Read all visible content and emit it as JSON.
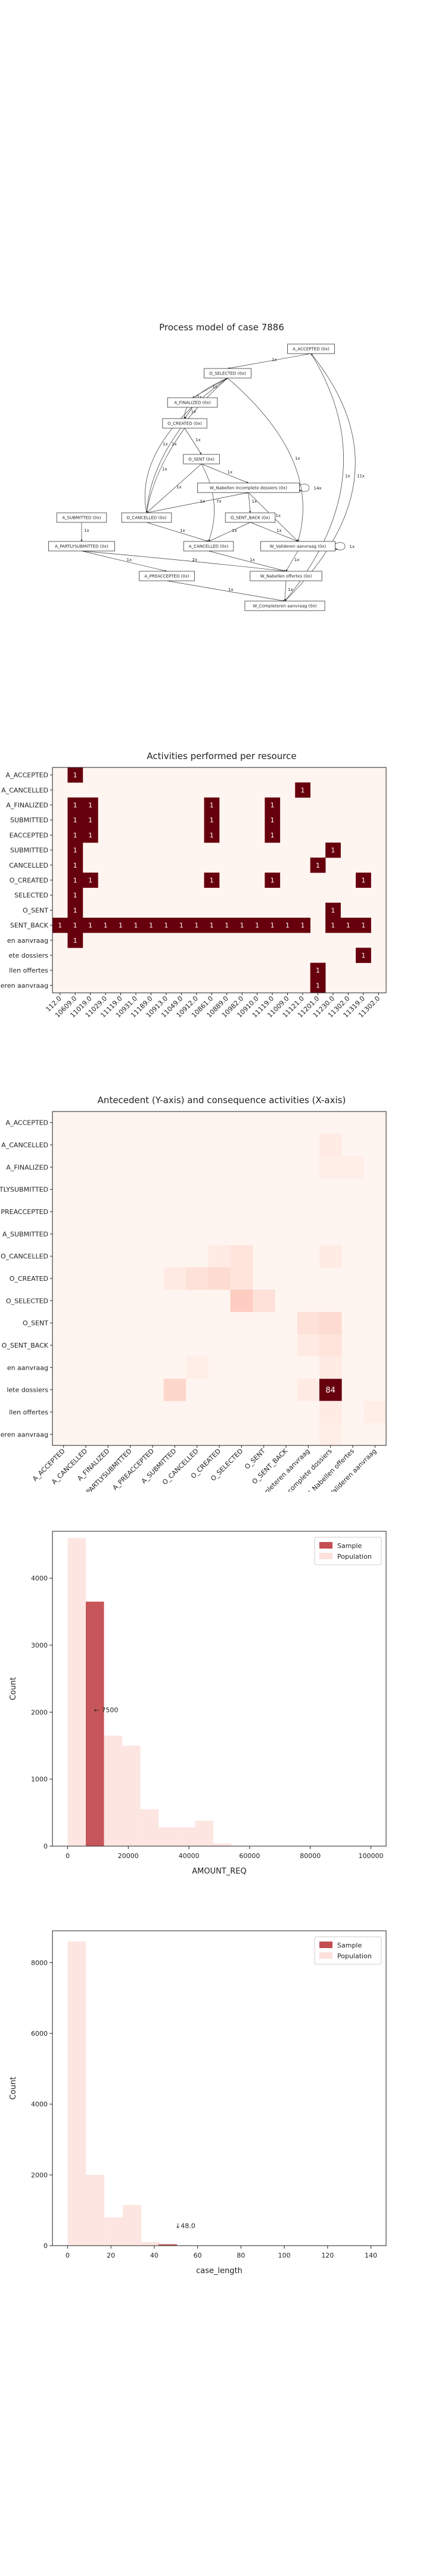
{
  "colors": {
    "dark": "#67000d",
    "light": "#fff5f0",
    "sample": "#c44e52",
    "population": "#fde0dc",
    "heat_mid": "#fb6a4a"
  },
  "chart_data": [
    {
      "type": "diagram",
      "title": "Process model of case 7886",
      "nodes": [
        {
          "id": "a_accepted",
          "label": "A_ACCEPTED (0x)"
        },
        {
          "id": "o_selected",
          "label": "O_SELECTED (0x)"
        },
        {
          "id": "a_finalized",
          "label": "A_FINALIZED (0x)"
        },
        {
          "id": "o_created",
          "label": "O_CREATED (0x)"
        },
        {
          "id": "o_sent",
          "label": "O_SENT (0x)"
        },
        {
          "id": "w_nabellen_incompleet",
          "label": "W_Nabellen incomplete dossiers (0x)"
        },
        {
          "id": "a_submitted",
          "label": "A_SUBMITTED (0x)"
        },
        {
          "id": "o_cancelled",
          "label": "O_CANCELLED (0x)"
        },
        {
          "id": "o_sent_back",
          "label": "O_SENT_BACK (0x)"
        },
        {
          "id": "a_partlysubmitted",
          "label": "A_PARTLYSUBMITTED (0x)"
        },
        {
          "id": "a_cancelled",
          "label": "A_CANCELLED (0x)"
        },
        {
          "id": "w_valideren",
          "label": "W_Valideren aanvraag (0x)"
        },
        {
          "id": "a_preaccepted",
          "label": "A_PREACCEPTED (0x)"
        },
        {
          "id": "w_nabellen_offertes",
          "label": "W_Nabellen offertes (0x)"
        },
        {
          "id": "w_completeren",
          "label": "W_Completeren aanvraag (0x)"
        }
      ],
      "edge_labels": [
        "1x",
        "1x",
        "1x",
        "1x",
        "1x",
        "1x",
        "1x",
        "1x",
        "1x",
        "1x",
        "1x",
        "1x",
        "1x",
        "1x",
        "1x",
        "1x",
        "1x",
        "1x",
        "1x",
        "1x",
        "1x",
        "1x",
        "1x",
        "1x",
        "14x",
        "11x",
        "2x",
        "7x",
        "1x"
      ]
    },
    {
      "type": "heatmap",
      "title": "Activities performed per resource",
      "rows": [
        "A_ACCEPTED",
        "A_CANCELLED",
        "A_FINALIZED",
        "A_SUBMITTED",
        "A_PREACCEPTED",
        "A_SUBMITTED",
        "O_CANCELLED",
        "O_CREATED",
        "O_SELECTED",
        "O_SENT",
        "O_SENT_BACK",
        "W_Completeren aanvraag",
        "W_Nabellen incomplete dossiers",
        "W_Nabellen offertes",
        "W_Valideren aanvraag"
      ],
      "row_labels_visible": [
        "A_ACCEPTED",
        "A_CANCELLED",
        "A_FINALIZED",
        "SUBMITTED",
        "EACCEPTED",
        "SUBMITTED",
        "CANCELLED",
        "O_CREATED",
        "SELECTED",
        "O_SENT",
        "SENT_BACK",
        "en aanvraag",
        "ete dossiers",
        "llen offertes",
        "eren aanvraag"
      ],
      "columns": [
        "112.0",
        "10609.0",
        "11019.0",
        "11029.0",
        "11119.0",
        "10931.0",
        "11189.0",
        "10913.0",
        "11049.0",
        "10912.0",
        "10861.0",
        "10889.0",
        "10982.0",
        "10910.0",
        "11119.0",
        "11009.0",
        "11121.0",
        "11201.0",
        "11230.0",
        "11302.0",
        "11319.0",
        "11302.0"
      ],
      "cells": [
        [
          0,
          1,
          1
        ],
        [
          1,
          16,
          1
        ],
        [
          2,
          1,
          1
        ],
        [
          2,
          2,
          1
        ],
        [
          2,
          10,
          1
        ],
        [
          2,
          14,
          1
        ],
        [
          3,
          1,
          1
        ],
        [
          3,
          2,
          1
        ],
        [
          3,
          10,
          1
        ],
        [
          3,
          14,
          1
        ],
        [
          4,
          1,
          1
        ],
        [
          4,
          2,
          1
        ],
        [
          4,
          10,
          1
        ],
        [
          4,
          14,
          1
        ],
        [
          5,
          1,
          1
        ],
        [
          5,
          18,
          1
        ],
        [
          6,
          1,
          1
        ],
        [
          6,
          17,
          1
        ],
        [
          7,
          1,
          1
        ],
        [
          7,
          2,
          1
        ],
        [
          7,
          10,
          1
        ],
        [
          7,
          14,
          1
        ],
        [
          7,
          20,
          1
        ],
        [
          8,
          1,
          1
        ],
        [
          9,
          1,
          1
        ],
        [
          9,
          18,
          1
        ],
        [
          10,
          0,
          1
        ],
        [
          10,
          1,
          1
        ],
        [
          10,
          2,
          1
        ],
        [
          10,
          3,
          1
        ],
        [
          10,
          4,
          1
        ],
        [
          10,
          5,
          1
        ],
        [
          10,
          6,
          1
        ],
        [
          10,
          7,
          1
        ],
        [
          10,
          8,
          1
        ],
        [
          10,
          9,
          1
        ],
        [
          10,
          10,
          1
        ],
        [
          10,
          11,
          1
        ],
        [
          10,
          12,
          1
        ],
        [
          10,
          13,
          1
        ],
        [
          10,
          14,
          1
        ],
        [
          10,
          15,
          1
        ],
        [
          10,
          16,
          1
        ],
        [
          10,
          18,
          1
        ],
        [
          10,
          19,
          1
        ],
        [
          10,
          20,
          1
        ],
        [
          11,
          1,
          1
        ],
        [
          12,
          20,
          1
        ],
        [
          13,
          17,
          1
        ],
        [
          14,
          17,
          1
        ]
      ]
    },
    {
      "type": "heatmap",
      "title": "Antecedent (Y-axis) and consequence activities (X-axis)",
      "rows": [
        "A_ACCEPTED",
        "A_CANCELLED",
        "A_FINALIZED",
        "A_PARTLYSUBMITTED",
        "A_PREACCEPTED",
        "A_SUBMITTED",
        "O_CANCELLED",
        "O_CREATED",
        "O_SELECTED",
        "O_SENT",
        "O_SENT_BACK",
        "W_Completeren aanvraag",
        "W_Nabellen incomplete dossiers",
        "W_Nabellen offertes",
        "W_Valideren aanvraag"
      ],
      "row_labels_visible": [
        "A_ACCEPTED",
        "A_CANCELLED",
        "A_FINALIZED",
        "PARTLYSUBMITTED",
        "PREACCEPTED",
        "A_SUBMITTED",
        "O_CANCELLED",
        "O_CREATED",
        "O_SELECTED",
        "O_SENT",
        "O_SENT_BACK",
        "en aanvraag",
        "lete dossiers",
        "llen offertes",
        "eren aanvraag"
      ],
      "columns": [
        "A_ACCEPTED",
        "A_CANCELLED",
        "A_FINALIZED",
        "A_PARTLYSUBMITTED",
        "A_PREACCEPTED",
        "A_SUBMITTED",
        "O_CANCELLED",
        "O_CREATED",
        "O_SELECTED",
        "O_SENT",
        "O_SENT_BACK",
        "W_Completeren aanvraag",
        "W_Nabellen incomplete dossiers",
        "W_Nabellen offertes",
        "W_Valideren aanvraag"
      ],
      "max": 84,
      "cells": [
        [
          1,
          12,
          3
        ],
        [
          2,
          12,
          2
        ],
        [
          2,
          13,
          2
        ],
        [
          6,
          7,
          3
        ],
        [
          6,
          8,
          5
        ],
        [
          6,
          12,
          3
        ],
        [
          7,
          5,
          3
        ],
        [
          7,
          6,
          6
        ],
        [
          7,
          7,
          8
        ],
        [
          7,
          8,
          5
        ],
        [
          8,
          8,
          12
        ],
        [
          8,
          9,
          6
        ],
        [
          9,
          11,
          6
        ],
        [
          9,
          12,
          8
        ],
        [
          10,
          11,
          3
        ],
        [
          10,
          12,
          5
        ],
        [
          12,
          5,
          9
        ],
        [
          12,
          11,
          3
        ],
        [
          12,
          12,
          84
        ],
        [
          13,
          12,
          3
        ],
        [
          13,
          14,
          2
        ],
        [
          11,
          6,
          2
        ],
        [
          11,
          12,
          3
        ],
        [
          14,
          12,
          2
        ]
      ],
      "labeled": [
        [
          12,
          12,
          "84"
        ]
      ]
    },
    {
      "type": "bar",
      "xlabel": "AMOUNT_REQ",
      "ylabel": "Count",
      "xlim": [
        -5000,
        105000
      ],
      "ylim": [
        0,
        4700
      ],
      "xticks": [
        "0",
        "20000",
        "40000",
        "60000",
        "80000",
        "100000"
      ],
      "xtick_values": [
        0,
        20000,
        40000,
        60000,
        80000,
        100000
      ],
      "yticks": [
        "0",
        "1000",
        "2000",
        "3000",
        "4000"
      ],
      "ytick_values": [
        0,
        1000,
        2000,
        3000,
        4000
      ],
      "bin_width": 6000,
      "population_bins_start": [
        0,
        6000,
        12000,
        18000,
        24000,
        30000,
        36000,
        42000,
        48000
      ],
      "population_values": [
        4600,
        3600,
        1650,
        1500,
        550,
        280,
        280,
        380,
        40
      ],
      "sample_bin": {
        "start": 6000,
        "value": 3650
      },
      "annotation": {
        "text": "← 7500",
        "x": 7500,
        "y": 2000
      },
      "legend": [
        "Sample",
        "Population"
      ],
      "legend_position": "top-right"
    },
    {
      "type": "bar",
      "xlabel": "case_length",
      "ylabel": "Count",
      "xlim": [
        -7,
        147
      ],
      "ylim": [
        0,
        8900
      ],
      "xticks": [
        "0",
        "20",
        "40",
        "60",
        "80",
        "100",
        "120",
        "140"
      ],
      "xtick_values": [
        0,
        20,
        40,
        60,
        80,
        100,
        120,
        140
      ],
      "yticks": [
        "0",
        "2000",
        "4000",
        "6000",
        "8000"
      ],
      "ytick_values": [
        0,
        2000,
        4000,
        6000,
        8000
      ],
      "bin_width": 8.5,
      "population_bins_start": [
        0,
        8.5,
        17,
        25.5,
        34
      ],
      "population_values": [
        8600,
        2000,
        800,
        1150,
        100
      ],
      "sample_bin": {
        "start": 42,
        "value": 40
      },
      "annotation": {
        "text": "↓48.0",
        "x": 48,
        "y": 500
      },
      "legend": [
        "Sample",
        "Population"
      ],
      "legend_position": "top-right"
    }
  ]
}
